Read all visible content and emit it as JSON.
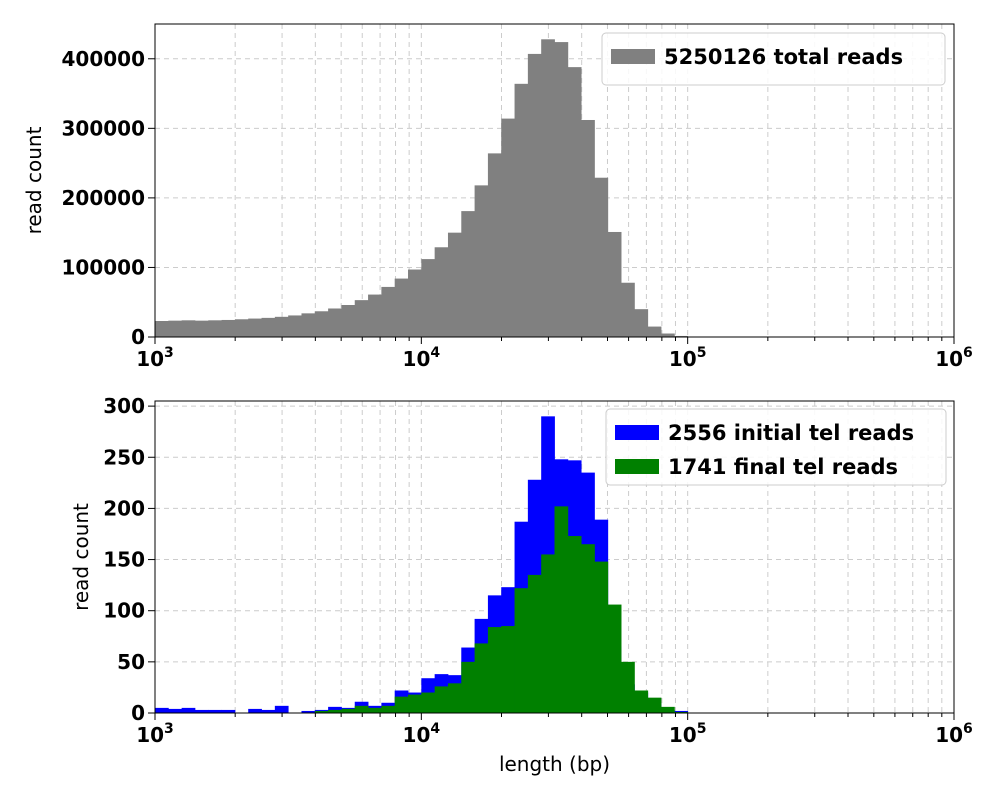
{
  "chart_data": [
    {
      "type": "bar",
      "scale": "log-x",
      "xlim": [
        1000,
        1000000
      ],
      "ylim": [
        0,
        450000
      ],
      "ylabel": "read count",
      "xlabel": "",
      "grid": true,
      "legend_position": "top-right",
      "x_ticks": [
        {
          "base": "10",
          "exp": "3"
        },
        {
          "base": "10",
          "exp": "4"
        },
        {
          "base": "10",
          "exp": "5"
        },
        {
          "base": "10",
          "exp": "6"
        }
      ],
      "y_ticks": [
        {
          "value": 0,
          "label": "0"
        },
        {
          "value": 100000,
          "label": "100000"
        },
        {
          "value": 200000,
          "label": "200000"
        },
        {
          "value": 300000,
          "label": "300000"
        },
        {
          "value": 400000,
          "label": "400000"
        }
      ],
      "series": [
        {
          "name": "5250126 total reads",
          "color": "#808080",
          "values": [
            23000,
            23500,
            24000,
            23500,
            24000,
            24500,
            25500,
            26500,
            27500,
            29000,
            31000,
            34000,
            37000,
            41000,
            46000,
            53000,
            61000,
            72000,
            84000,
            97000,
            112000,
            129000,
            150000,
            181000,
            218000,
            264000,
            314000,
            364000,
            407000,
            428000,
            424000,
            388000,
            312000,
            229000,
            151000,
            78000,
            40000,
            15000,
            5000,
            1500,
            500,
            0,
            0,
            0,
            0,
            0,
            0,
            0,
            0,
            0,
            0,
            0,
            0,
            0,
            0,
            0,
            0,
            0,
            0,
            0
          ]
        }
      ]
    },
    {
      "type": "bar",
      "scale": "log-x",
      "xlim": [
        1000,
        1000000
      ],
      "ylim": [
        0,
        305
      ],
      "ylabel": "read count",
      "xlabel": "length (bp)",
      "grid": true,
      "legend_position": "top-right",
      "x_ticks": [
        {
          "base": "10",
          "exp": "3"
        },
        {
          "base": "10",
          "exp": "4"
        },
        {
          "base": "10",
          "exp": "5"
        },
        {
          "base": "10",
          "exp": "6"
        }
      ],
      "y_ticks": [
        {
          "value": 0,
          "label": "0"
        },
        {
          "value": 50,
          "label": "50"
        },
        {
          "value": 100,
          "label": "100"
        },
        {
          "value": 150,
          "label": "150"
        },
        {
          "value": 200,
          "label": "200"
        },
        {
          "value": 250,
          "label": "250"
        },
        {
          "value": 300,
          "label": "300"
        }
      ],
      "series": [
        {
          "name": "2556 initial tel reads",
          "color": "#0000ff",
          "values": [
            5,
            4,
            5,
            3,
            3,
            3,
            0,
            4,
            3,
            7,
            0,
            2,
            3,
            6,
            5,
            11,
            7,
            10,
            22,
            20,
            34,
            38,
            37,
            64,
            92,
            115,
            123,
            187,
            228,
            290,
            248,
            247,
            235,
            189,
            65,
            28,
            20,
            10,
            3,
            2,
            0,
            0,
            0,
            0,
            0,
            0,
            0,
            0,
            0,
            0,
            0,
            0,
            0,
            0,
            0,
            0,
            0,
            0,
            0,
            0
          ]
        },
        {
          "name": "1741 final tel reads",
          "color": "#008000",
          "values": [
            0,
            0,
            0,
            0,
            0,
            0,
            0,
            0,
            0,
            0,
            0,
            0,
            2,
            3,
            4,
            7,
            5,
            7,
            16,
            18,
            20,
            26,
            29,
            50,
            68,
            84,
            85,
            122,
            135,
            155,
            202,
            173,
            165,
            148,
            106,
            50,
            22,
            15,
            6,
            1,
            0,
            0,
            0,
            0,
            0,
            0,
            0,
            0,
            0,
            0,
            0,
            0,
            0,
            0,
            0,
            0,
            0,
            0,
            0,
            0
          ]
        }
      ]
    }
  ]
}
